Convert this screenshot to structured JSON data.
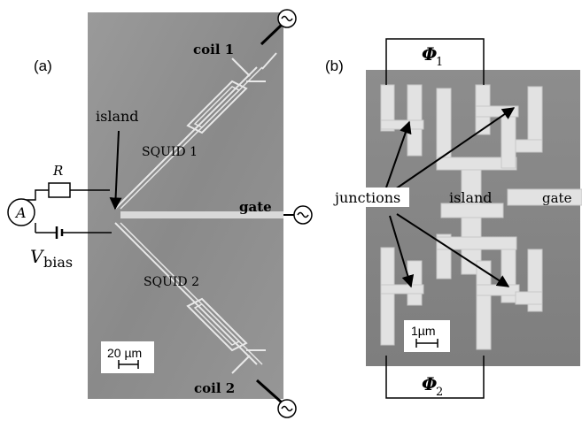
{
  "panel_a": {
    "label": "(a)",
    "coil1": "coil 1",
    "coil2": "coil 2",
    "island": "island",
    "squid1": "SQUID 1",
    "squid2": "SQUID 2",
    "gate": "gate",
    "resistor": "R",
    "ammeter": "A",
    "vbias_main": "V",
    "vbias_sub": "bias",
    "scalebar": "20 µm"
  },
  "panel_b": {
    "label": "(b)",
    "flux1_main": "Φ",
    "flux1_sub": "1",
    "flux2_main": "Φ",
    "flux2_sub": "2",
    "junctions": "junctions",
    "island": "island",
    "gate": "gate",
    "scalebar": "1µm"
  },
  "colors": {
    "sem_background": "#8c8c8c",
    "sem_light": "#e6e6e6",
    "wiring": "#000000"
  }
}
